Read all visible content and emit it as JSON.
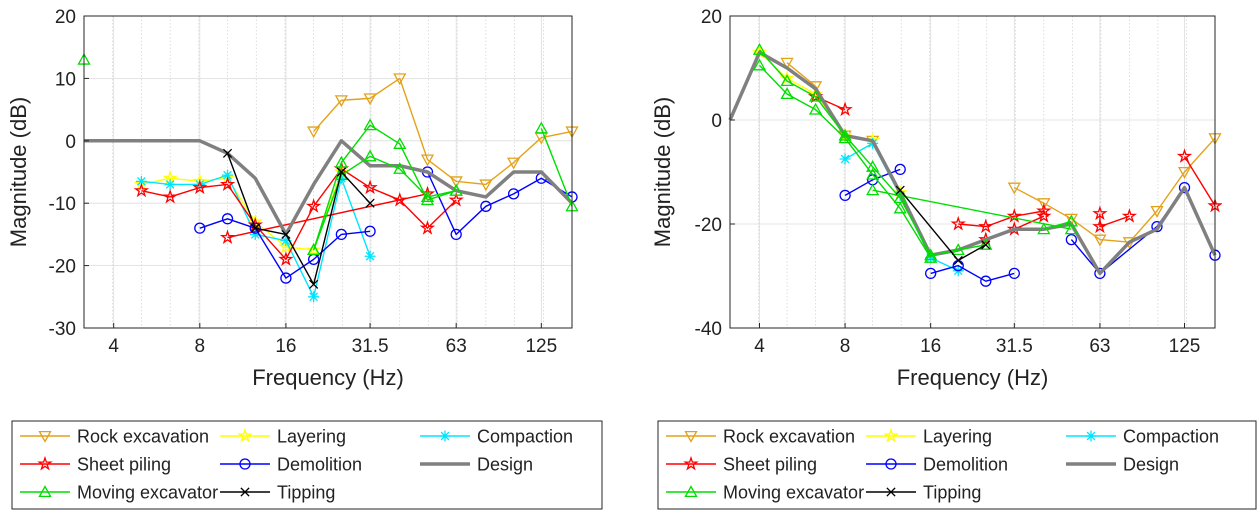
{
  "chart_data": [
    {
      "type": "line",
      "xscale": "log",
      "xlabel": "Frequency (Hz)",
      "ylabel": "Magnitude (dB)",
      "xlim": [
        3.15,
        160
      ],
      "ylim": [
        -30,
        20
      ],
      "xticks": [
        4,
        8,
        16,
        31.5,
        63,
        125
      ],
      "xtick_labels": [
        "4",
        "8",
        "16",
        "31.5",
        "63",
        "125"
      ],
      "yticks": [
        -30,
        -20,
        -10,
        0,
        10,
        20
      ],
      "ytick_labels": [
        "-30",
        "-20",
        "-10",
        "0",
        "10",
        "20"
      ],
      "grid": true,
      "legend_position": "below",
      "series": [
        {
          "name": "Rock excavation",
          "color": "#E3A21A",
          "marker": "triangle-down",
          "x": [
            20,
            25,
            31.5,
            40,
            50,
            63,
            80,
            100,
            125,
            160
          ],
          "y": [
            1.5,
            6.5,
            6.8,
            10,
            -3,
            -6.5,
            -7,
            -3.5,
            0.5,
            1.5
          ]
        },
        {
          "name": "Layering",
          "color": "#FFFF00",
          "marker": "star",
          "x": [
            5,
            6.3,
            8,
            10,
            12.5,
            16,
            20,
            25
          ],
          "y": [
            -7,
            -6,
            -6.5,
            -6,
            -13,
            -17,
            -17.5,
            -5
          ]
        },
        {
          "name": "Compaction",
          "color": "#00E5FF",
          "marker": "asterisk",
          "x": [
            5,
            6.3,
            8,
            10,
            12.5,
            16,
            20,
            25,
            31.5
          ],
          "y": [
            -6.5,
            -7,
            -7,
            -5.5,
            -15,
            -16,
            -25,
            -6,
            -18.5
          ]
        },
        {
          "name": "Sheet piling",
          "color": "#FF0000",
          "marker": "star",
          "x": [
            5,
            6.3,
            8,
            10,
            12.5,
            16,
            20,
            25,
            31.5,
            40,
            50,
            63
          ],
          "y": [
            -8,
            -9,
            -7.5,
            -7,
            -13.5,
            -19,
            -10.5,
            -4.5,
            -7.5,
            -9.5,
            -14,
            -9.5
          ]
        },
        {
          "name": "Sheet piling (single)",
          "color": "#FF0000",
          "marker": "star",
          "x": [
            10,
            50
          ],
          "y": [
            -15.5,
            -8.5
          ]
        },
        {
          "name": "Demolition",
          "color": "#0000FF",
          "marker": "circle",
          "x": [
            8,
            10,
            12.5,
            16,
            20,
            25,
            31.5
          ],
          "y": [
            -14,
            -12.5,
            -14,
            -22,
            -19,
            -15,
            -14.5
          ]
        },
        {
          "name": "Demolition (2)",
          "color": "#0000FF",
          "marker": "circle",
          "x": [
            50,
            63,
            80,
            100,
            125,
            160
          ],
          "y": [
            -5,
            -15,
            -10.5,
            -8.5,
            -6,
            -9
          ]
        },
        {
          "name": "Design",
          "color": "#808080",
          "marker": "none",
          "width": 3.5,
          "x": [
            3.15,
            4,
            5,
            6.3,
            8,
            10,
            12.5,
            16,
            20,
            25,
            31.5,
            40,
            50,
            63,
            80,
            100,
            125,
            160
          ],
          "y": [
            0,
            0,
            0,
            0,
            0,
            -2,
            -6,
            -15,
            -7,
            0,
            -4,
            -4,
            -5,
            -8,
            -9,
            -5,
            -5,
            -10
          ]
        },
        {
          "name": "Moving excavator",
          "color": "#00DD00",
          "marker": "triangle",
          "x": [
            20,
            25,
            31.5,
            40,
            50,
            63
          ],
          "y": [
            -17.5,
            -3.5,
            2.5,
            -0.5,
            -9.5,
            -8
          ]
        },
        {
          "name": "Moving excavator (2)",
          "color": "#00DD00",
          "marker": "triangle",
          "x": [
            20,
            25,
            31.5,
            40,
            50,
            63
          ],
          "y": [
            -17.5,
            -5.5,
            -2.5,
            -4.5,
            -9,
            -8
          ]
        },
        {
          "name": "Moving excavator (3)",
          "color": "#00DD00",
          "marker": "triangle",
          "x": [
            125,
            160
          ],
          "y": [
            2,
            -10.5
          ]
        },
        {
          "name": "Moving excavator (single)",
          "color": "#00DD00",
          "marker": "triangle",
          "x": [
            3.15
          ],
          "y": [
            13
          ]
        },
        {
          "name": "Tipping",
          "color": "#000000",
          "marker": "x",
          "x": [
            10,
            12.5,
            16,
            20,
            25,
            31.5
          ],
          "y": [
            -2,
            -14,
            -15,
            -23,
            -5,
            -10
          ]
        }
      ],
      "legend": [
        {
          "label": "Rock excavation",
          "color": "#E3A21A",
          "marker": "triangle-down"
        },
        {
          "label": "Layering",
          "color": "#FFFF00",
          "marker": "star"
        },
        {
          "label": "Compaction",
          "color": "#00E5FF",
          "marker": "asterisk"
        },
        {
          "label": "Sheet piling",
          "color": "#FF0000",
          "marker": "star"
        },
        {
          "label": "Demolition",
          "color": "#0000FF",
          "marker": "circle"
        },
        {
          "label": "Design",
          "color": "#808080",
          "marker": "none",
          "width": 3.5
        },
        {
          "label": "Moving excavator",
          "color": "#00DD00",
          "marker": "triangle"
        },
        {
          "label": "Tipping",
          "color": "#000000",
          "marker": "x"
        }
      ]
    },
    {
      "type": "line",
      "xscale": "log",
      "xlabel": "Frequency (Hz)",
      "ylabel": "Magnitude (dB)",
      "xlim": [
        3.15,
        160
      ],
      "ylim": [
        -40,
        20
      ],
      "xticks": [
        4,
        8,
        16,
        31.5,
        63,
        125
      ],
      "xtick_labels": [
        "4",
        "8",
        "16",
        "31.5",
        "63",
        "125"
      ],
      "yticks": [
        -40,
        -20,
        0,
        20
      ],
      "ytick_labels": [
        "-40",
        "-20",
        "0",
        "20"
      ],
      "grid": true,
      "legend_position": "below",
      "series": [
        {
          "name": "Rock excavation",
          "color": "#E3A21A",
          "marker": "triangle-down",
          "x": [
            31.5,
            40,
            50,
            63,
            80,
            100,
            125,
            160
          ],
          "y": [
            -13,
            -16,
            -19,
            -23,
            -23.5,
            -17.5,
            -10,
            -3.5
          ]
        },
        {
          "name": "Rock excavation (2)",
          "color": "#E3A21A",
          "marker": "triangle-down",
          "x": [
            5,
            6.3,
            8,
            10
          ],
          "y": [
            11,
            6.5,
            -3,
            -4
          ]
        },
        {
          "name": "Layering",
          "color": "#FFFF00",
          "marker": "star",
          "x": [
            4,
            5,
            6.3,
            8,
            10,
            12.5
          ],
          "y": [
            13,
            8,
            5,
            -3,
            -4,
            -14
          ]
        },
        {
          "name": "Compaction",
          "color": "#00E5FF",
          "marker": "asterisk",
          "x": [
            8,
            10,
            12.5,
            16,
            20
          ],
          "y": [
            -7.5,
            -4.5,
            -14.5,
            -26.5,
            -29
          ]
        },
        {
          "name": "Sheet piling",
          "color": "#FF0000",
          "marker": "star",
          "x": [
            6.3,
            8
          ],
          "y": [
            4.5,
            2
          ]
        },
        {
          "name": "Sheet piling (2)",
          "color": "#FF0000",
          "marker": "star",
          "x": [
            20,
            25,
            31.5,
            40
          ],
          "y": [
            -20,
            -20.5,
            -18.5,
            -17.5
          ]
        },
        {
          "name": "Sheet piling (3)",
          "color": "#FF0000",
          "marker": "star",
          "x": [
            25,
            31.5,
            40
          ],
          "y": [
            -23,
            -21,
            -18.5
          ]
        },
        {
          "name": "Sheet piling (4)",
          "color": "#FF0000",
          "marker": "star",
          "x": [
            125,
            160
          ],
          "y": [
            -7,
            -16.5
          ]
        },
        {
          "name": "Sheet piling (single)",
          "color": "#FF0000",
          "marker": "star",
          "x": [
            63,
            63,
            80
          ],
          "y": [
            -18,
            -20.5,
            -18.5
          ]
        },
        {
          "name": "Demolition",
          "color": "#0000FF",
          "marker": "circle",
          "x": [
            8,
            10,
            12.5
          ],
          "y": [
            -14.5,
            -11.5,
            -9.5
          ]
        },
        {
          "name": "Demolition (2)",
          "color": "#0000FF",
          "marker": "circle",
          "x": [
            16,
            20,
            25,
            31.5
          ],
          "y": [
            -29.5,
            -28,
            -31,
            -29.5
          ]
        },
        {
          "name": "Demolition (3)",
          "color": "#0000FF",
          "marker": "circle",
          "x": [
            50,
            63,
            100,
            125,
            160
          ],
          "y": [
            -23,
            -29.5,
            -20.5,
            -13,
            -26
          ]
        },
        {
          "name": "Design",
          "color": "#808080",
          "marker": "none",
          "width": 3.5,
          "x": [
            3.15,
            4,
            5,
            6.3,
            8,
            10,
            12.5,
            16,
            20,
            25,
            31.5,
            40,
            50,
            63,
            80,
            100,
            125,
            160
          ],
          "y": [
            0,
            13,
            10,
            6,
            -3,
            -4,
            -14,
            -26,
            -25,
            -23,
            -21,
            -21,
            -20,
            -29.5,
            -23.5,
            -21,
            -13,
            -26
          ]
        },
        {
          "name": "Moving excavator",
          "color": "#00DD00",
          "marker": "triangle",
          "x": [
            4,
            5,
            6.3,
            8,
            10,
            12.5,
            16,
            20,
            25
          ],
          "y": [
            13.5,
            7.5,
            4.5,
            -3,
            -9,
            -15,
            -26,
            -25,
            -24
          ]
        },
        {
          "name": "Moving excavator (2)",
          "color": "#00DD00",
          "marker": "triangle",
          "x": [
            4,
            5,
            6.3,
            8,
            10,
            12.5,
            16
          ],
          "y": [
            10.5,
            5,
            2,
            -3.5,
            -10.5,
            -17,
            -26.5
          ]
        },
        {
          "name": "Moving excavator (3)",
          "color": "#00DD00",
          "marker": "triangle",
          "x": [
            40,
            50
          ],
          "y": [
            -21,
            -19.5
          ]
        },
        {
          "name": "Moving excavator (4)",
          "color": "#00DD00",
          "marker": "triangle",
          "x": [
            10,
            50
          ],
          "y": [
            -13.5,
            -21
          ]
        },
        {
          "name": "Tipping",
          "color": "#000000",
          "marker": "x",
          "x": [
            12.5,
            20,
            25
          ],
          "y": [
            -13.5,
            -27,
            -24
          ]
        }
      ],
      "legend": [
        {
          "label": "Rock excavation",
          "color": "#E3A21A",
          "marker": "triangle-down"
        },
        {
          "label": "Layering",
          "color": "#FFFF00",
          "marker": "star"
        },
        {
          "label": "Compaction",
          "color": "#00E5FF",
          "marker": "asterisk"
        },
        {
          "label": "Sheet piling",
          "color": "#FF0000",
          "marker": "star"
        },
        {
          "label": "Demolition",
          "color": "#0000FF",
          "marker": "circle"
        },
        {
          "label": "Design",
          "color": "#808080",
          "marker": "none",
          "width": 3.5
        },
        {
          "label": "Moving excavator",
          "color": "#00DD00",
          "marker": "triangle"
        },
        {
          "label": "Tipping",
          "color": "#000000",
          "marker": "x"
        }
      ]
    }
  ]
}
